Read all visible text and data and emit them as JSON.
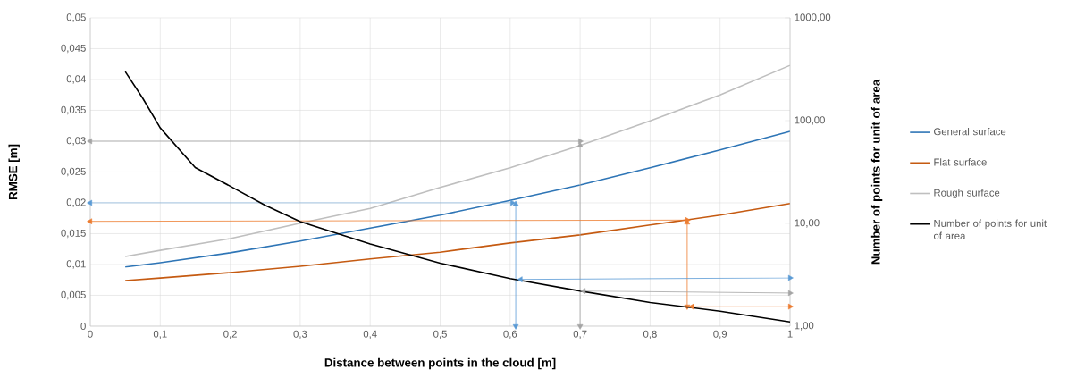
{
  "chart_data": {
    "type": "line",
    "xlabel": "Distance between points in the cloud [m]",
    "ylabel": "RMSE [m]",
    "y2label": "Number of points for unit of area",
    "xlim": [
      0,
      1
    ],
    "xticks": [
      0,
      {
        "value": 0.1,
        "label": "0,1"
      },
      {
        "value": 0.2,
        "label": "0,2"
      },
      {
        "value": 0.3,
        "label": "0,3"
      },
      {
        "value": 0.4,
        "label": "0,4"
      },
      {
        "value": 0.5,
        "label": "0,5"
      },
      {
        "value": 0.6,
        "label": "0,6"
      },
      {
        "value": 0.7,
        "label": "0,7"
      },
      {
        "value": 0.8,
        "label": "0,8"
      },
      {
        "value": 0.9,
        "label": "0,9"
      },
      1
    ],
    "ylim": [
      0,
      0.05
    ],
    "yticks": [
      0,
      {
        "value": 0.005,
        "label": "0,005"
      },
      {
        "value": 0.01,
        "label": "0,01"
      },
      {
        "value": 0.015,
        "label": "0,015"
      },
      {
        "value": 0.02,
        "label": "0,02"
      },
      {
        "value": 0.025,
        "label": "0,025"
      },
      {
        "value": 0.03,
        "label": "0,03"
      },
      {
        "value": 0.035,
        "label": "0,035"
      },
      {
        "value": 0.04,
        "label": "0,04"
      },
      {
        "value": 0.045,
        "label": "0,045"
      },
      {
        "value": 0.05,
        "label": "0,05"
      }
    ],
    "y2lim": [
      1,
      1000
    ],
    "y2ticks": [
      {
        "value": 1,
        "label": "1,00"
      },
      {
        "value": 10,
        "label": "10,00"
      },
      {
        "value": 100,
        "label": "100,00"
      },
      {
        "value": 1000,
        "label": "1000,00"
      }
    ],
    "log": "y2",
    "grid": true,
    "legend": "right",
    "x": [
      0.05,
      0.1,
      0.2,
      0.3,
      0.4,
      0.5,
      0.6,
      0.7,
      0.8,
      0.9,
      1
    ],
    "series": [
      {
        "name": "General surface",
        "color": "#2e75b6",
        "values": [
          0.0096,
          0.0103,
          0.0119,
          0.0138,
          0.0159,
          0.018,
          0.0204,
          0.0229,
          0.0257,
          0.0286,
          0.0316
        ]
      },
      {
        "name": "Flat surface",
        "color": "#c55a11",
        "values": [
          0.0074,
          0.0078,
          0.0087,
          0.0097,
          0.0109,
          0.012,
          0.0135,
          0.0148,
          0.0164,
          0.018,
          0.0199
        ]
      },
      {
        "name": "Rough surface",
        "color": "#bfbfbf",
        "values": [
          0.0113,
          0.0123,
          0.0142,
          0.0167,
          0.0191,
          0.0225,
          0.0257,
          0.0293,
          0.0333,
          0.0375,
          0.0423
        ]
      },
      {
        "type": "line",
        "color": "#a5a5a5",
        "marker": "triangle",
        "x": [
          0,
          0.7
        ],
        "values": [
          0.03,
          0.03
        ]
      },
      {
        "type": "line",
        "color": "#a5a5a5",
        "marker": "triangle",
        "x": [
          0.7,
          0.7
        ],
        "values": [
          0,
          0.0293
        ]
      },
      {
        "type": "line",
        "color": "#5b9bd5",
        "marker": "triangle",
        "x": [
          0,
          0.603
        ],
        "values": [
          0.02,
          0.02
        ]
      },
      {
        "type": "line",
        "color": "#5b9bd5",
        "marker": "triangle",
        "x": [
          0.608,
          0.608
        ],
        "values": [
          0,
          0.0198
        ]
      },
      {
        "type": "line",
        "color": "#ed7d31",
        "marker": "triangle",
        "x": [
          0,
          0.853
        ],
        "values": [
          0.017,
          0.0172
        ]
      },
      {
        "type": "line",
        "color": "#ed7d31",
        "marker": "triangle",
        "x": [
          0.853,
          0.853
        ],
        "values": [
          0.0168,
          0.0032
        ]
      },
      {
        "name": "Number of points for unit of area",
        "color": "#000000",
        "axis": "y2",
        "x": [
          0.05,
          0.075,
          0.1,
          0.15,
          0.2,
          0.25,
          0.3,
          0.4,
          0.5,
          0.6,
          0.7,
          0.8,
          0.9,
          1
        ],
        "values": [
          300,
          165,
          85,
          35,
          23,
          15,
          10.4,
          6.3,
          4.1,
          2.9,
          2.2,
          1.7,
          1.4,
          1.1
        ]
      },
      {
        "type": "line",
        "color": "#5b9bd5",
        "marker": "triangle",
        "axis": "y2",
        "x": [
          0.615,
          1
        ],
        "values": [
          2.85,
          2.95
        ]
      },
      {
        "type": "line",
        "color": "#a5a5a5",
        "marker": "triangle",
        "axis": "y2",
        "x": [
          0.705,
          1
        ],
        "values": [
          2.2,
          2.1
        ]
      },
      {
        "type": "line",
        "color": "#ed7d31",
        "marker": "triangle",
        "axis": "y2",
        "x": [
          0.86,
          1
        ],
        "values": [
          1.55,
          1.55
        ]
      }
    ]
  }
}
